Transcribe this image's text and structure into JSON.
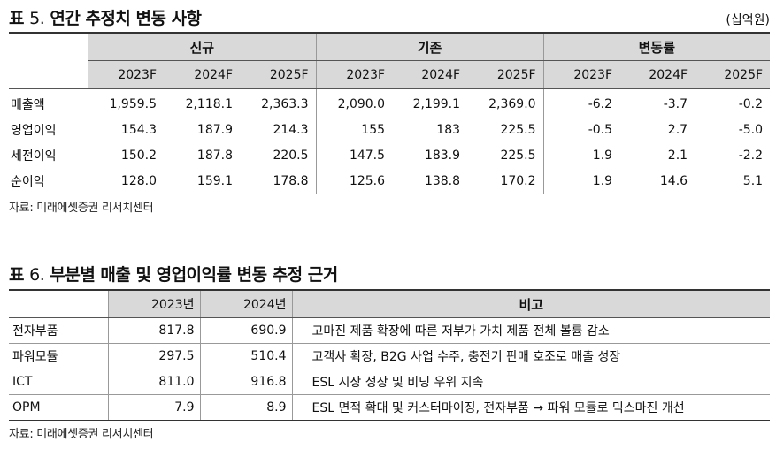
{
  "table5": {
    "title_prefix": "표",
    "title_number": "5.",
    "title_text": "연간 추정치 변동 사항",
    "unit": "(십억원)",
    "groups": [
      "신규",
      "기존",
      "변동률"
    ],
    "years": [
      "2023F",
      "2024F",
      "2025F"
    ],
    "rows": [
      {
        "label": "매출액",
        "values": [
          "1,959.5",
          "2,118.1",
          "2,363.3",
          "2,090.0",
          "2,199.1",
          "2,369.0",
          "-6.2",
          "-3.7",
          "-0.2"
        ]
      },
      {
        "label": "영업이익",
        "values": [
          "154.3",
          "187.9",
          "214.3",
          "155",
          "183",
          "225.5",
          "-0.5",
          "2.7",
          "-5.0"
        ]
      },
      {
        "label": "세전이익",
        "values": [
          "150.2",
          "187.8",
          "220.5",
          "147.5",
          "183.9",
          "225.5",
          "1.9",
          "2.1",
          "-2.2"
        ]
      },
      {
        "label": "순이익",
        "values": [
          "128.0",
          "159.1",
          "178.8",
          "125.6",
          "138.8",
          "170.2",
          "1.9",
          "14.6",
          "5.1"
        ]
      }
    ],
    "source": "자료: 미래에셋증권 리서치센터"
  },
  "table6": {
    "title_prefix": "표",
    "title_number": "6.",
    "title_text": "부분별 매출 및 영업이익률 변동 추정 근거",
    "headers": [
      "2023년",
      "2024년",
      "비고"
    ],
    "rows": [
      {
        "label": "전자부품",
        "v2023": "817.8",
        "v2024": "690.9",
        "note": "고마진 제품 확장에 따른 저부가 가치 제품 전체 볼륨 감소"
      },
      {
        "label": "파워모듈",
        "v2023": "297.5",
        "v2024": "510.4",
        "note": "고객사 확장, B2G 사업 수주, 충전기 판매 호조로 매출 성장"
      },
      {
        "label": "ICT",
        "v2023": "811.0",
        "v2024": "916.8",
        "note": "ESL 시장 성장 및 비딩 우위 지속"
      },
      {
        "label": "OPM",
        "v2023": "7.9",
        "v2024": "8.9",
        "note": "ESL 면적 확대 및 커스터마이징, 전자부품 → 파워 모듈로 믹스마진 개선"
      }
    ],
    "source": "자료: 미래에셋증권 리서치센터"
  }
}
